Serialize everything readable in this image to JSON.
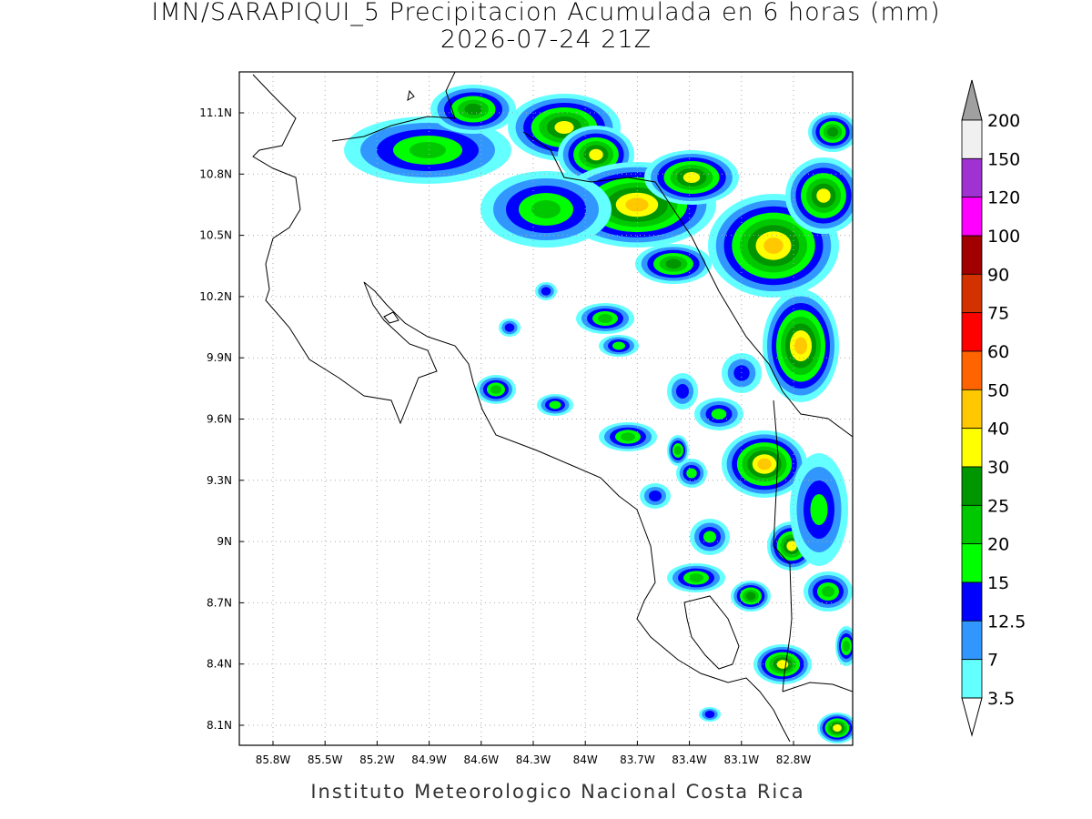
{
  "header": {
    "title": "IMN/SARAPIQUI_5 Precipitacion Acumulada en 6 horas (mm)",
    "subtitle": "2026-07-24 21Z"
  },
  "map": {
    "lat_labels": [
      "11.1N",
      "10.8N",
      "10.5N",
      "10.2N",
      "9.9N",
      "9.6N",
      "9.3N",
      "9N",
      "8.7N",
      "8.4N",
      "8.1N"
    ],
    "lon_labels": [
      "85.8W",
      "85.5W",
      "85.2W",
      "84.9W",
      "84.6W",
      "84.3W",
      "84W",
      "83.7W",
      "83.4W",
      "83.1W",
      "82.8W"
    ]
  },
  "colorbar": {
    "labels": [
      "200",
      "150",
      "120",
      "100",
      "90",
      "75",
      "60",
      "50",
      "40",
      "30",
      "25",
      "20",
      "15",
      "12.5",
      "7",
      "3.5"
    ],
    "colors": [
      "#f0f0f0",
      "#a032d2",
      "#ff00ff",
      "#a00000",
      "#d23200",
      "#ff0000",
      "#ff6400",
      "#ffc800",
      "#ffff00",
      "#009600",
      "#00c800",
      "#00ff00",
      "#0000ff",
      "#3296ff",
      "#64ffff"
    ],
    "over_color": "#a0a0a0",
    "under_color": "#ffffff"
  },
  "footer": "Instituto Meteorologico Nacional Costa Rica"
}
